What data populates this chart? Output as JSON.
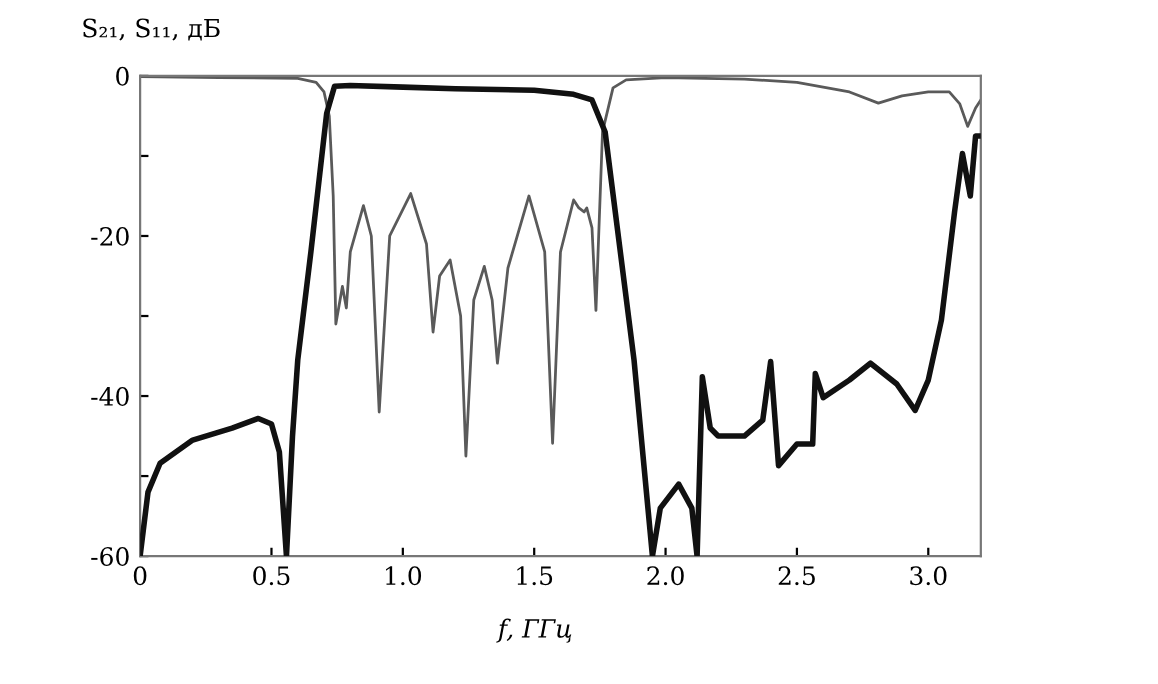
{
  "chart_data": {
    "type": "line",
    "xlabel": "f, ГГц",
    "ylabel": "S₂₁, S₁₁, дБ",
    "xlim": [
      0,
      3.2
    ],
    "ylim": [
      -60,
      0
    ],
    "xticks": [
      {
        "value": 0,
        "label": "0"
      },
      {
        "value": 0.5,
        "label": "0.5"
      },
      {
        "value": 1.0,
        "label": "1.0"
      },
      {
        "value": 1.5,
        "label": "1.5"
      },
      {
        "value": 2.0,
        "label": "2.0"
      },
      {
        "value": 2.5,
        "label": "2.5"
      },
      {
        "value": 3.0,
        "label": "3.0"
      }
    ],
    "yticks": [
      0,
      {
        "value": -10,
        "label": null
      },
      -20,
      {
        "value": -30,
        "label": null
      },
      -40,
      {
        "value": -50,
        "label": null
      },
      -60
    ],
    "grid": false,
    "marker": "none",
    "line_style": "solid",
    "series": [
      {
        "color": "#111111",
        "x": [
          0,
          0.03,
          0.076,
          0.2,
          0.35,
          0.45,
          0.5,
          0.53,
          0.557,
          0.58,
          0.6,
          0.65,
          0.71,
          0.74,
          0.8,
          1.0,
          1.2,
          1.5,
          1.65,
          1.72,
          1.77,
          1.88,
          1.95,
          1.98,
          2.05,
          2.1,
          2.12,
          2.14,
          2.17,
          2.2,
          2.3,
          2.37,
          2.4,
          2.43,
          2.5,
          2.56,
          2.57,
          2.6,
          2.7,
          2.78,
          2.88,
          2.95,
          3.0,
          3.05,
          3.1,
          3.13,
          3.16,
          3.18,
          3.2
        ],
        "values": [
          -60,
          -52,
          -48.4,
          -45.5,
          -44,
          -42.8,
          -43.5,
          -47,
          -60,
          -45,
          -35.5,
          -22,
          -4.7,
          -1.3,
          -1.2,
          -1.4,
          -1.6,
          -1.8,
          -2.3,
          -3,
          -7,
          -35.5,
          -60,
          -54,
          -51,
          -54,
          -60,
          -37.6,
          -44,
          -45,
          -45,
          -43,
          -35.7,
          -48.7,
          -46,
          -46,
          -37.2,
          -40.2,
          -38,
          -35.9,
          -38.5,
          -41.8,
          -38,
          -30.5,
          -17,
          -9.7,
          -15,
          -7.5,
          -7.5
        ]
      },
      {
        "color": "#5a5a5a",
        "x": [
          0,
          0.3,
          0.6,
          0.67,
          0.7,
          0.72,
          0.735,
          0.745,
          0.77,
          0.785,
          0.8,
          0.85,
          0.88,
          0.91,
          0.95,
          1.03,
          1.09,
          1.115,
          1.14,
          1.18,
          1.22,
          1.24,
          1.27,
          1.31,
          1.34,
          1.36,
          1.4,
          1.48,
          1.54,
          1.57,
          1.6,
          1.65,
          1.67,
          1.69,
          1.7,
          1.72,
          1.735,
          1.76,
          1.8,
          1.85,
          2.0,
          2.3,
          2.5,
          2.7,
          2.81,
          2.9,
          3.0,
          3.08,
          3.12,
          3.15,
          3.18,
          3.2
        ],
        "values": [
          -0.1,
          -0.2,
          -0.3,
          -0.8,
          -2,
          -5,
          -15,
          -31,
          -26.3,
          -29,
          -22,
          -16.2,
          -20,
          -42,
          -20,
          -14.7,
          -21,
          -32,
          -25,
          -23,
          -30,
          -47.5,
          -28,
          -23.8,
          -28,
          -35.9,
          -24,
          -15,
          -22,
          -45.9,
          -22,
          -15.5,
          -16.5,
          -17,
          -16.5,
          -19,
          -29.3,
          -7,
          -1.5,
          -0.5,
          -0.2,
          -0.4,
          -0.8,
          -2,
          -3.4,
          -2.5,
          -2,
          -2,
          -3.5,
          -6.3,
          -4,
          -3
        ]
      }
    ]
  }
}
